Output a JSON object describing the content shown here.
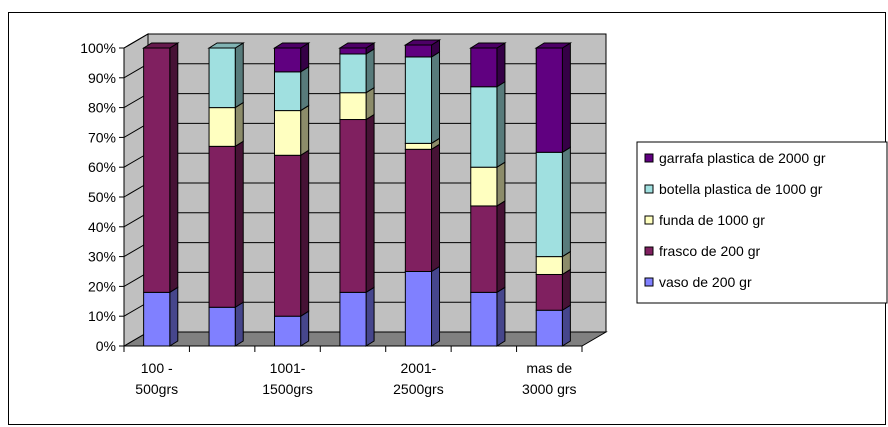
{
  "chart_data": {
    "type": "bar",
    "stacked": true,
    "percent": true,
    "three_d": true,
    "categories": [
      "100 - 500grs",
      "",
      "1001- 1500grs",
      "",
      "2001- 2500grs",
      "",
      "mas de 3000 grs"
    ],
    "category_label_lines": [
      [
        "100 -",
        "500grs"
      ],
      [
        "1001-",
        "1500grs"
      ],
      [
        "2001-",
        "2500grs"
      ],
      [
        "mas de",
        "3000 grs"
      ]
    ],
    "y_ticks": [
      "0%",
      "10%",
      "20%",
      "30%",
      "40%",
      "50%",
      "60%",
      "70%",
      "80%",
      "90%",
      "100%"
    ],
    "ylim": [
      0,
      100
    ],
    "grid": true,
    "legend_position": "right",
    "series": [
      {
        "name": "vaso de 200 gr",
        "color": "#8080FF",
        "values": [
          18,
          13,
          10,
          18,
          25,
          18,
          12
        ]
      },
      {
        "name": "frasco de 200 gr",
        "color": "#802060",
        "values": [
          82,
          54,
          54,
          58,
          41,
          29,
          12
        ]
      },
      {
        "name": "funda de 1000 gr",
        "color": "#FFFFC0",
        "values": [
          0,
          13,
          15,
          9,
          2,
          13,
          6
        ]
      },
      {
        "name": "botella plastica de 1000 gr",
        "color": "#A0E0E0",
        "values": [
          0,
          20,
          13,
          13,
          29,
          27,
          35
        ]
      },
      {
        "name": "garrafa plastica de 2000 gr",
        "color": "#600080",
        "values": [
          0,
          0,
          8,
          2,
          4,
          13,
          35
        ]
      }
    ]
  }
}
